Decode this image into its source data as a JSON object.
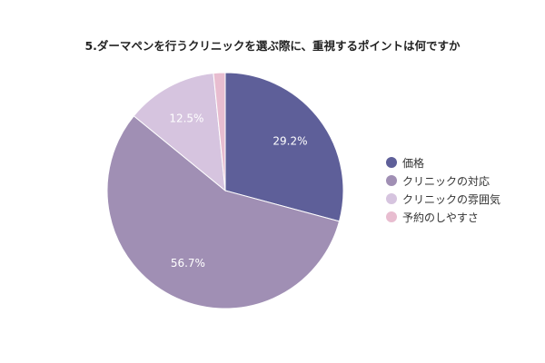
{
  "chart_data": {
    "type": "pie",
    "title": "5.ダーマペンを行うクリニックを選ぶ際に、重視するポイントは何ですか",
    "categories": [
      "価格",
      "クリニックの対応",
      "クリニックの雰囲気",
      "予約のしやすさ"
    ],
    "values": [
      29.2,
      56.7,
      12.5,
      1.6
    ],
    "data_labels": [
      "29.2%",
      "56.7%",
      "12.5%",
      ""
    ],
    "colors": [
      "#5e5f99",
      "#a08fb4",
      "#d6c4df",
      "#e8bdd0"
    ],
    "legend_position": "right",
    "start_angle": "top",
    "direction": "clockwise"
  }
}
